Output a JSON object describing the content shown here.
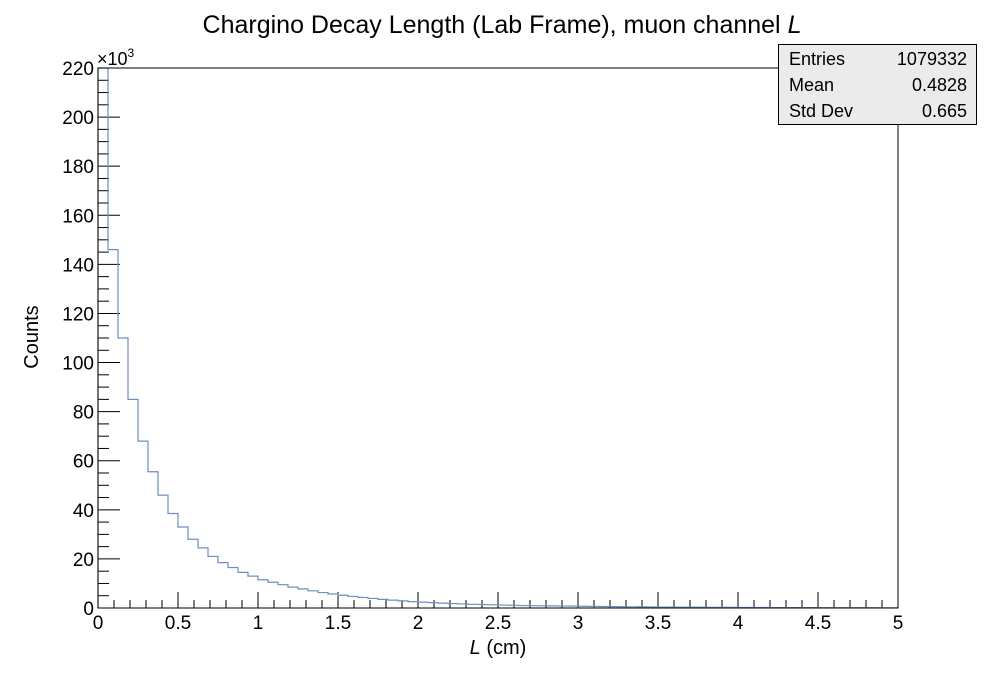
{
  "chart_data": {
    "type": "histogram",
    "title_text": "Chargino Decay Length (Lab Frame), muon channel ",
    "title_symbol": "L",
    "xlabel_symbol": "L",
    "xlabel_unit": " (cm)",
    "ylabel": "Counts",
    "y_multiplier_base": "×10",
    "y_multiplier_exp": "3",
    "xlim": [
      0,
      5
    ],
    "ylim": [
      0,
      220000
    ],
    "x_ticks": [
      "0",
      "0.5",
      "1",
      "1.5",
      "2",
      "2.5",
      "3",
      "3.5",
      "4",
      "4.5",
      "5"
    ],
    "y_ticks": [
      "0",
      "20",
      "40",
      "60",
      "80",
      "100",
      "120",
      "140",
      "160",
      "180",
      "200",
      "220"
    ],
    "bin_width": 0.0625,
    "bin_edges_start": 0,
    "counts": [
      222000,
      146000,
      110000,
      85000,
      68000,
      55500,
      46000,
      38500,
      33000,
      28000,
      24500,
      21000,
      18500,
      16500,
      14500,
      13000,
      11500,
      10500,
      9500,
      8500,
      7800,
      7000,
      6300,
      5700,
      5200,
      4700,
      4300,
      3900,
      3500,
      3200,
      2900,
      2600,
      2400,
      2200,
      2000,
      1800,
      1650,
      1500,
      1400,
      1300,
      1200,
      1100,
      1000,
      950,
      900,
      850,
      800,
      750,
      700,
      650,
      600,
      560,
      520,
      480,
      450,
      420,
      390,
      360,
      340,
      320,
      300,
      280,
      260,
      240,
      220,
      200,
      190,
      180,
      170,
      160,
      150,
      140,
      130,
      120,
      110,
      100,
      95,
      90,
      85,
      80
    ],
    "line_color": "#6f8fbf",
    "stats": [
      {
        "label": "Entries",
        "value": "1079332"
      },
      {
        "label": "Mean",
        "value": "0.4828"
      },
      {
        "label": "Std Dev",
        "value": "0.665"
      }
    ]
  }
}
